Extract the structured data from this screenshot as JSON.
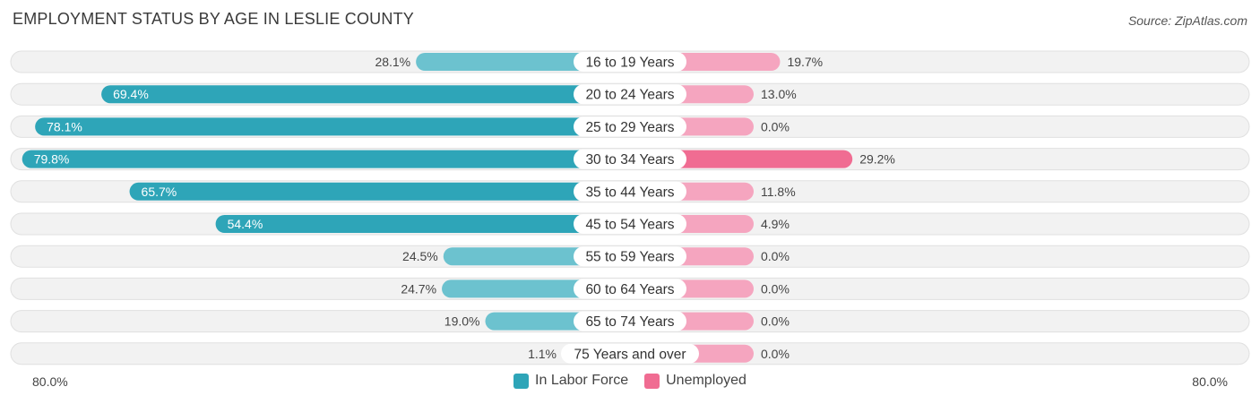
{
  "title": "EMPLOYMENT STATUS BY AGE IN LESLIE COUNTY",
  "source": "Source: ZipAtlas.com",
  "colors": {
    "labor_dark": "#2ea5b8",
    "labor_light": "#6cc2cf",
    "unemp_dark": "#f06c92",
    "unemp_light": "#f5a5bf",
    "row_bg": "#f2f2f2",
    "row_border": "#e0e0e0"
  },
  "chart_data": {
    "type": "bar",
    "orientation": "horizontal-diverging",
    "categories": [
      "16 to 19 Years",
      "20 to 24 Years",
      "25 to 29 Years",
      "30 to 34 Years",
      "35 to 44 Years",
      "45 to 54 Years",
      "55 to 59 Years",
      "60 to 64 Years",
      "65 to 74 Years",
      "75 Years and over"
    ],
    "series": [
      {
        "name": "In Labor Force",
        "values": [
          28.1,
          69.4,
          78.1,
          79.8,
          65.7,
          54.4,
          24.5,
          24.7,
          19.0,
          1.1
        ],
        "labels": [
          "28.1%",
          "69.4%",
          "78.1%",
          "79.8%",
          "65.7%",
          "54.4%",
          "24.5%",
          "24.7%",
          "19.0%",
          "1.1%"
        ]
      },
      {
        "name": "Unemployed",
        "values": [
          19.7,
          13.0,
          0.0,
          29.2,
          11.8,
          4.9,
          0.0,
          0.0,
          0.0,
          0.0
        ],
        "labels": [
          "19.7%",
          "13.0%",
          "0.0%",
          "29.2%",
          "11.8%",
          "4.9%",
          "0.0%",
          "0.0%",
          "0.0%",
          "0.0%"
        ]
      }
    ],
    "xlim": [
      -80,
      80
    ],
    "axis_labels": {
      "left": "80.0%",
      "right": "80.0%"
    },
    "legend_position": "bottom-center"
  }
}
